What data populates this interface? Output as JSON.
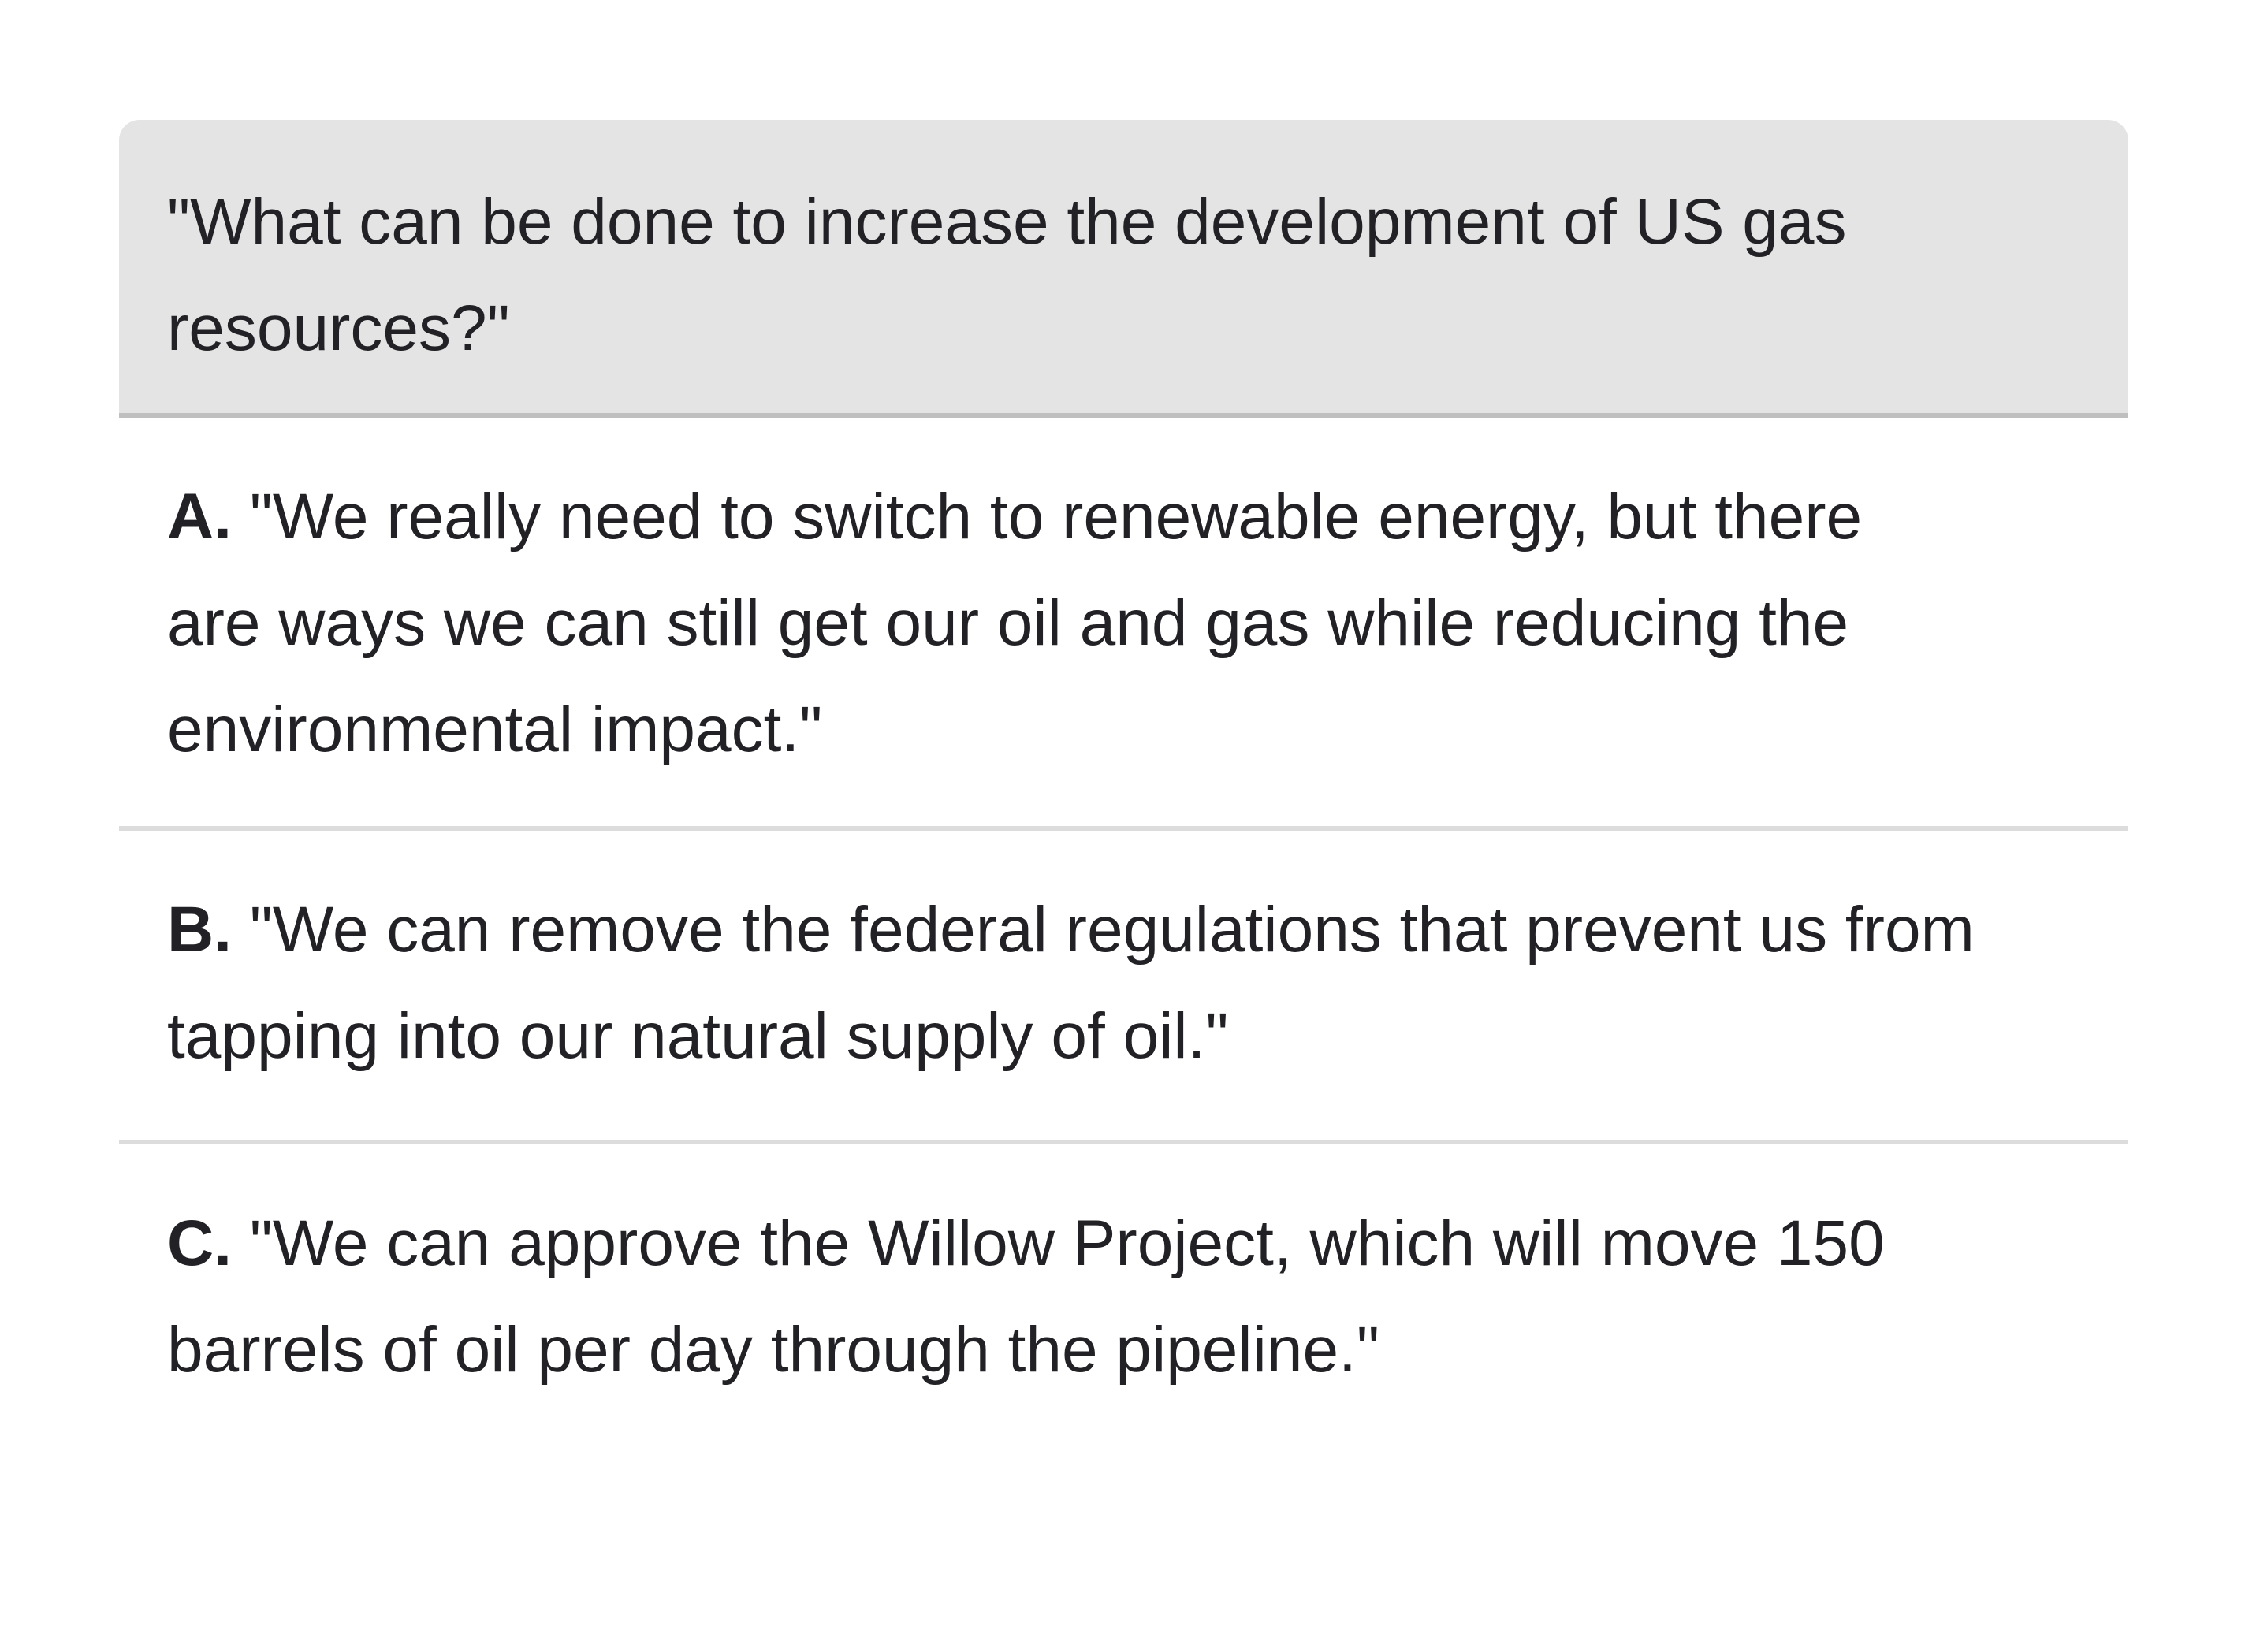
{
  "question": {
    "text": "\"What can be done to increase the development of US gas resources?\""
  },
  "options": [
    {
      "letter": "A.",
      "text": "\"We really need to switch to renewable energy, but there are ways we can still get our oil and gas while reducing the environmental impact.\""
    },
    {
      "letter": "B.",
      "text": "\"We can remove the federal regulations that prevent us from tapping into our natural supply of oil.\""
    },
    {
      "letter": "C.",
      "text": "\"We can approve the Willow Project, which will move 150 barrels of oil per day through the pipeline.\""
    }
  ],
  "colors": {
    "question_background": "#e4e4e4",
    "question_divider": "#bfbfbf",
    "option_divider": "#dcdcdc",
    "text": "#222226"
  }
}
